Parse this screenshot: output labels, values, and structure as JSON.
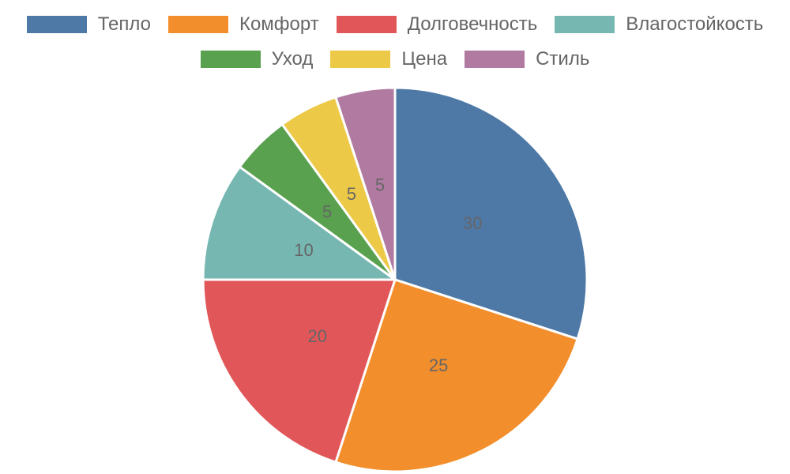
{
  "chart_data": {
    "type": "pie",
    "title": "",
    "categories": [
      "Тепло",
      "Комфорт",
      "Долговечность",
      "Влагостойкость",
      "Уход",
      "Цена",
      "Стиль"
    ],
    "values": [
      30,
      25,
      20,
      10,
      5,
      5,
      5
    ],
    "colors": [
      "#4e79a7",
      "#f28e2b",
      "#e15759",
      "#76b7b2",
      "#59a14f",
      "#edc948",
      "#b07aa1"
    ],
    "data_labels": [
      "30",
      "25",
      "20",
      "10",
      "5",
      "5",
      "5"
    ],
    "legend_position": "top"
  }
}
